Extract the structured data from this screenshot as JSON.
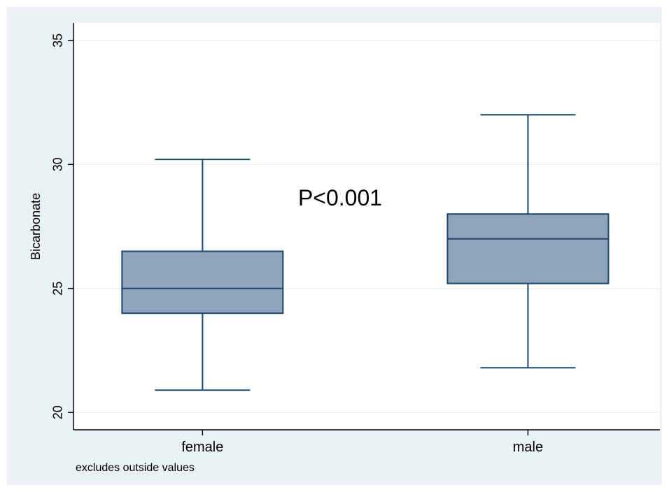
{
  "chart_data": {
    "type": "boxplot",
    "ylabel": "Bicarbonate",
    "ylim": [
      19.3,
      35.7
    ],
    "yticks": [
      20,
      25,
      30,
      35
    ],
    "grid": true,
    "categories": [
      "female",
      "male"
    ],
    "boxes": [
      {
        "category": "female",
        "whisker_low": 20.9,
        "q1": 24.0,
        "median": 25.0,
        "q3": 26.5,
        "whisker_high": 30.2
      },
      {
        "category": "male",
        "whisker_low": 21.8,
        "q1": 25.2,
        "median": 27.0,
        "q3": 28.0,
        "whisker_high": 32.0
      }
    ],
    "annotation": "P<0.001",
    "note": "excludes outside values",
    "colors": {
      "background": "#eaf2f3",
      "plot_background": "#ffffff",
      "box_fill": "#8fa3bb",
      "box_stroke": "#1a476f",
      "grid": "#eaf2f3",
      "axis": "#000000"
    }
  }
}
